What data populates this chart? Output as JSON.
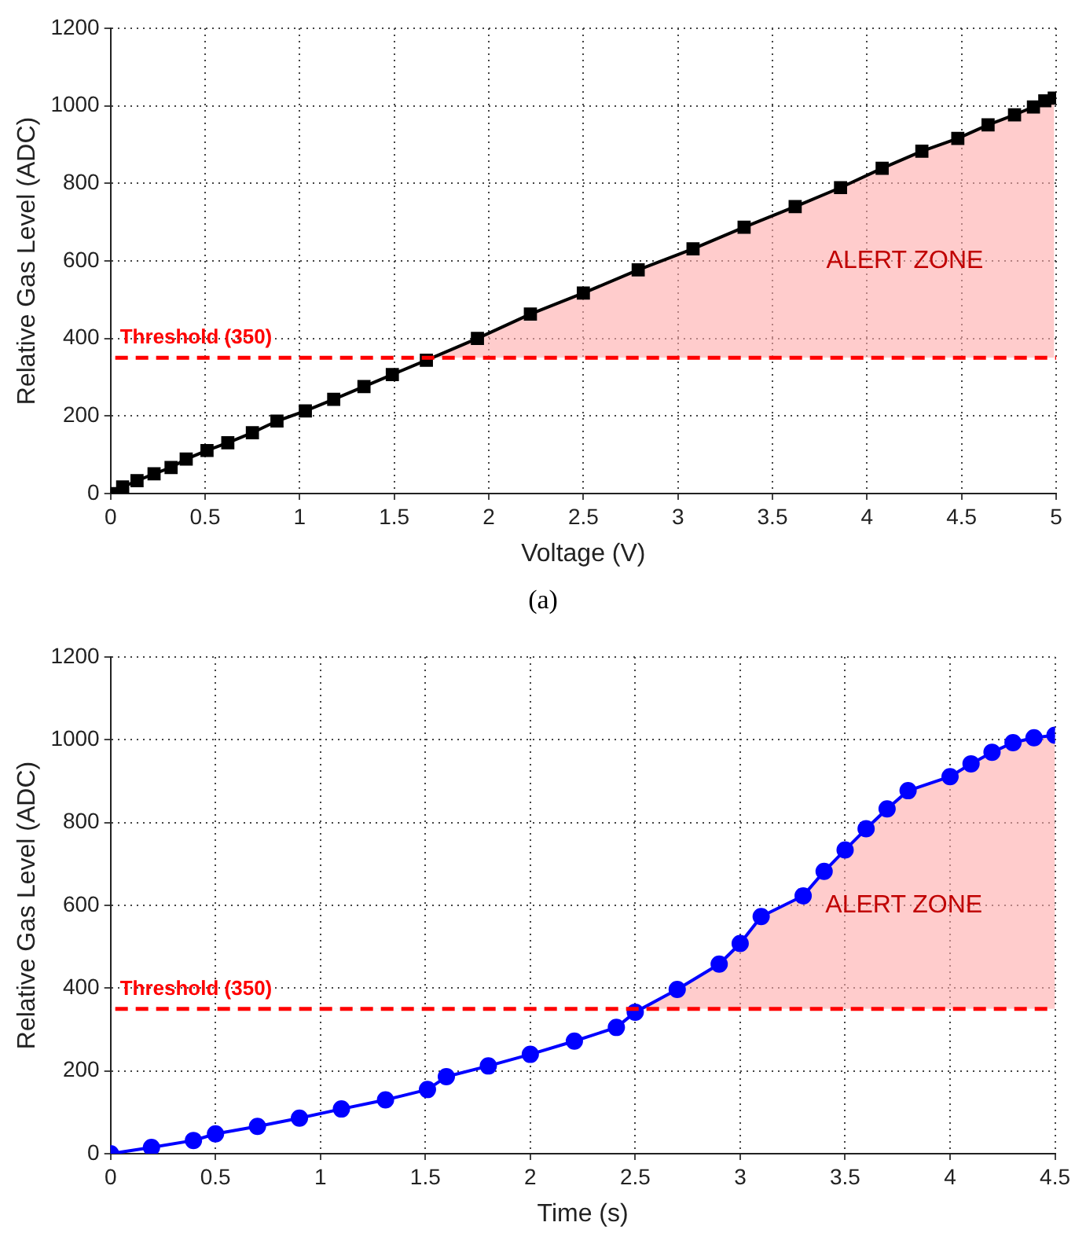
{
  "chart_data": [
    {
      "type": "line",
      "xlabel": "Voltage (V)",
      "ylabel": "Relative Gas Level (ADC)",
      "marker": "square",
      "line_style": "solid",
      "grid": true,
      "legend": false,
      "xlim": [
        0,
        5
      ],
      "xticks": [
        0,
        0.5,
        1,
        1.5,
        2,
        2.5,
        3,
        3.5,
        4,
        4.5,
        5
      ],
      "ylim": [
        0,
        1200
      ],
      "yticks": [
        0,
        200,
        400,
        600,
        800,
        1000,
        1200
      ],
      "series": [
        {
          "color": "#000000",
          "x": [
            0,
            0.064,
            0.14,
            0.23,
            0.32,
            0.4,
            0.51,
            0.62,
            0.75,
            0.88,
            1.03,
            1.18,
            1.34,
            1.49,
            1.67,
            1.94,
            2.22,
            2.5,
            2.79,
            3.08,
            3.35,
            3.62,
            3.86,
            4.08,
            4.29,
            4.48,
            4.64,
            4.78,
            4.88,
            4.94,
            4.99
          ],
          "values": [
            0,
            17,
            33,
            51,
            67,
            89,
            111,
            131,
            157,
            187,
            213,
            243,
            276,
            307,
            344,
            400,
            463,
            517,
            577,
            631,
            687,
            740,
            789,
            839,
            883,
            916,
            951,
            977,
            997,
            1013,
            1020
          ]
        }
      ],
      "ref_lines": [
        {
          "axis": "y",
          "value": 350,
          "label": "Threshold (350)",
          "color": "#ff0000",
          "line_style": "dashed"
        }
      ],
      "annotations": [
        "ALERT ZONE",
        "(a)"
      ]
    },
    {
      "type": "line",
      "xlabel": "Time (s)",
      "ylabel": "Relative Gas Level (ADC)",
      "marker": "circle",
      "line_style": "solid",
      "grid": true,
      "legend": false,
      "xlim": [
        0,
        4.5
      ],
      "xticks": [
        0,
        0.5,
        1,
        1.5,
        2,
        2.5,
        3,
        3.5,
        4,
        4.5
      ],
      "ylim": [
        0,
        1200
      ],
      "yticks": [
        0,
        200,
        400,
        600,
        800,
        1000,
        1200
      ],
      "series": [
        {
          "color": "#0000ff",
          "x": [
            0,
            0.195,
            0.395,
            0.5,
            0.7,
            0.9,
            1.1,
            1.31,
            1.51,
            1.6,
            1.8,
            2.0,
            2.21,
            2.41,
            2.5,
            2.7,
            2.9,
            3.0,
            3.1,
            3.3,
            3.4,
            3.5,
            3.6,
            3.7,
            3.8,
            4.0,
            4.1,
            4.2,
            4.3,
            4.4,
            4.5
          ],
          "values": [
            0,
            15,
            32,
            48,
            66,
            86,
            108,
            130,
            155,
            186,
            212,
            240,
            272,
            305,
            342,
            397,
            458,
            508,
            573,
            623,
            682,
            734,
            785,
            833,
            877,
            911,
            942,
            970,
            993,
            1005,
            1011
          ]
        }
      ],
      "ref_lines": [
        {
          "axis": "y",
          "value": 350,
          "label": "Threshold (350)",
          "color": "#ff0000",
          "line_style": "dashed"
        }
      ],
      "annotations": [
        "ALERT ZONE"
      ]
    }
  ]
}
